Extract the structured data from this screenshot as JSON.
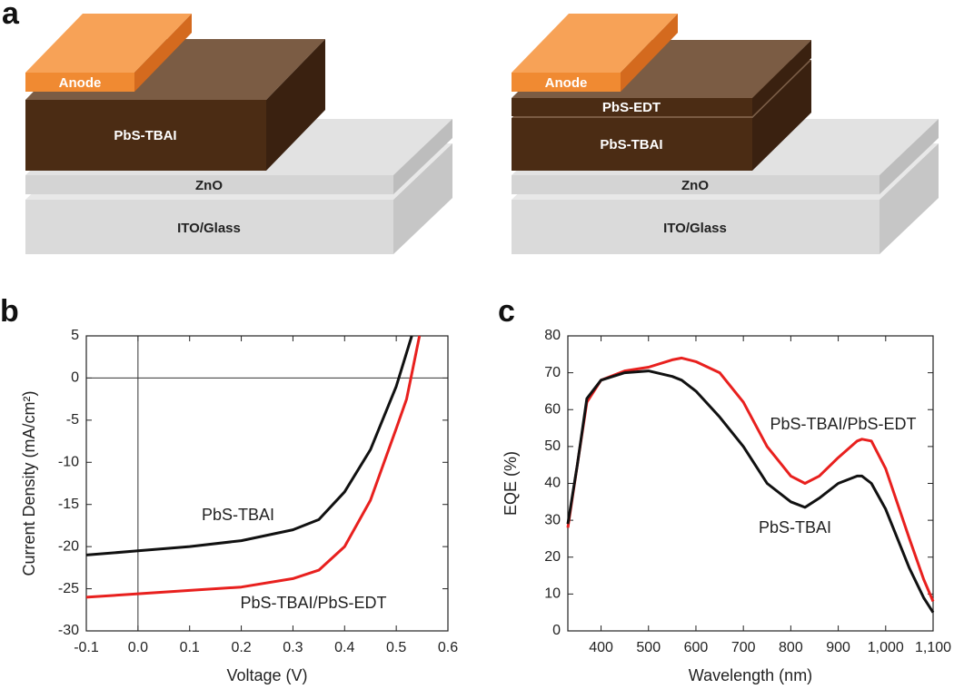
{
  "panel_a": {
    "label": "a",
    "diagrams": [
      {
        "anode": "Anode",
        "layers": [
          "PbS-TBAI"
        ],
        "zno": "ZnO",
        "substrate": "ITO/Glass"
      },
      {
        "anode": "Anode",
        "layers": [
          "PbS-EDT",
          "PbS-TBAI"
        ],
        "zno": "ZnO",
        "substrate": "ITO/Glass"
      }
    ]
  },
  "chart_data": [
    {
      "type": "line",
      "panel_label": "b",
      "xlabel": "Voltage (V)",
      "ylabel": "Current Density (mA/cm²)",
      "x": [
        -0.1,
        0,
        0.1,
        0.2,
        0.3,
        0.35,
        0.4,
        0.45,
        0.5,
        0.52,
        0.53,
        0.545
      ],
      "series": [
        {
          "name": "PbS-TBAI",
          "color": "#111111",
          "values": [
            -21,
            -20.5,
            -20,
            -19.3,
            -18,
            -16.8,
            -13.5,
            -8.5,
            -1,
            3,
            5,
            null
          ]
        },
        {
          "name": "PbS-TBAI/PbS-EDT",
          "color": "#e8201e",
          "values": [
            -26,
            -25.6,
            -25.2,
            -24.8,
            -23.8,
            -22.8,
            -20,
            -14.5,
            -6,
            -2.5,
            0.5,
            5
          ]
        }
      ],
      "xlim": [
        -0.1,
        0.6
      ],
      "ylim": [
        -30,
        5
      ],
      "xticks": [
        -0.1,
        {
          "value": 0,
          "label": "0.0"
        },
        0.1,
        0.2,
        0.3,
        0.4,
        0.5,
        0.6
      ],
      "yticks": [
        -30,
        -25,
        -20,
        -15,
        -10,
        -5,
        0,
        5
      ],
      "zero_lines": true
    },
    {
      "type": "line",
      "panel_label": "c",
      "xlabel": "Wavelength (nm)",
      "ylabel": "EQE (%)",
      "x": [
        330,
        350,
        370,
        400,
        450,
        500,
        550,
        570,
        600,
        650,
        700,
        750,
        800,
        830,
        860,
        900,
        940,
        950,
        970,
        1000,
        1050,
        1080,
        1100
      ],
      "series": [
        {
          "name": "PbS-TBAI/PbS-EDT",
          "color": "#e8201e",
          "values": [
            28,
            45,
            62,
            68,
            70.5,
            71.5,
            73.5,
            74,
            73,
            70,
            62,
            50,
            42,
            40,
            42,
            47,
            51.5,
            52,
            51.5,
            44,
            25,
            14,
            8
          ]
        },
        {
          "name": "PbS-TBAI",
          "color": "#111111",
          "values": [
            29,
            45,
            63,
            68,
            70,
            70.5,
            69,
            68,
            65,
            58,
            50,
            40,
            35,
            33.5,
            36,
            40,
            42,
            42,
            40,
            33,
            17,
            9,
            5
          ]
        }
      ],
      "xlim": [
        330,
        1100
      ],
      "ylim": [
        0,
        80
      ],
      "xticks": [
        400,
        500,
        600,
        700,
        800,
        900,
        {
          "value": 1000,
          "label": "1,000"
        },
        {
          "value": 1100,
          "label": "1,100"
        }
      ],
      "yticks": [
        0,
        10,
        20,
        30,
        40,
        50,
        60,
        70,
        80
      ],
      "zero_lines": false
    }
  ]
}
